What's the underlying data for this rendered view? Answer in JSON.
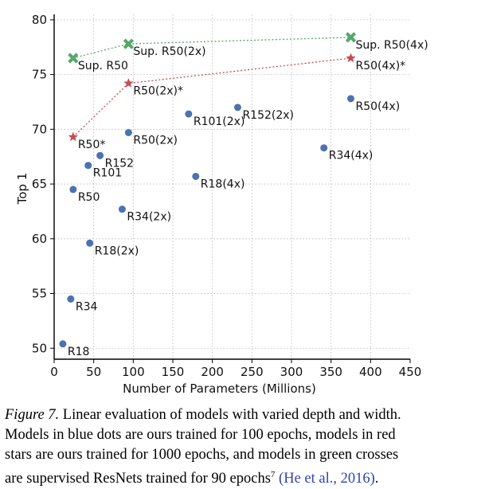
{
  "chart_data": {
    "type": "scatter",
    "xlabel": "Number of Parameters (Millions)",
    "ylabel": "Top 1",
    "xlim": [
      0,
      450
    ],
    "ylim": [
      49,
      80.5
    ],
    "xticks": [
      0,
      50,
      100,
      150,
      200,
      250,
      300,
      350,
      400,
      450
    ],
    "yticks": [
      50,
      55,
      60,
      65,
      70,
      75,
      80
    ],
    "grid": true,
    "series": [
      {
        "marker": "circle",
        "color": "#4c72b0",
        "connected": false,
        "points": [
          {
            "label": "R18",
            "x": 11,
            "y": 50.4
          },
          {
            "label": "R34",
            "x": 21,
            "y": 54.5
          },
          {
            "label": "R50",
            "x": 24,
            "y": 64.5
          },
          {
            "label": "R101",
            "x": 43,
            "y": 66.7
          },
          {
            "label": "R152",
            "x": 58,
            "y": 67.6
          },
          {
            "label": "R18(2x)",
            "x": 45,
            "y": 59.6
          },
          {
            "label": "R34(2x)",
            "x": 86,
            "y": 62.7
          },
          {
            "label": "R50(2x)",
            "x": 94,
            "y": 69.7
          },
          {
            "label": "R101(2x)",
            "x": 170,
            "y": 71.4
          },
          {
            "label": "R152(2x)",
            "x": 232,
            "y": 72.0
          },
          {
            "label": "R18(4x)",
            "x": 179,
            "y": 65.7
          },
          {
            "label": "R34(4x)",
            "x": 341,
            "y": 68.3
          },
          {
            "label": "R50(4x)",
            "x": 375,
            "y": 72.8
          }
        ]
      },
      {
        "marker": "star",
        "color": "#c44e52",
        "connected": true,
        "points": [
          {
            "label": "R50*",
            "x": 24,
            "y": 69.3
          },
          {
            "label": "R50(2x)*",
            "x": 94,
            "y": 74.2
          },
          {
            "label": "R50(4x)*",
            "x": 375,
            "y": 76.5
          }
        ]
      },
      {
        "marker": "cross",
        "color": "#55a868",
        "connected": true,
        "points": [
          {
            "label": "Sup. R50",
            "x": 24,
            "y": 76.5
          },
          {
            "label": "Sup. R50(2x)",
            "x": 94,
            "y": 77.8
          },
          {
            "label": "Sup. R50(4x)",
            "x": 375,
            "y": 78.4
          }
        ]
      }
    ]
  },
  "caption": {
    "figure_label": "Figure 7.",
    "text_line1": " Linear evaluation of models with varied depth and width.",
    "text_line2": "Models in blue dots are ours trained for 100 epochs, models in red",
    "text_line3": "stars are ours trained for 1000 epochs, and models in green crosses",
    "text_line4_pre": "are supervised ResNets trained for 90 epochs",
    "footnote_mark": "7",
    "citation": "(He et al., 2016)",
    "text_line4_post": "."
  }
}
